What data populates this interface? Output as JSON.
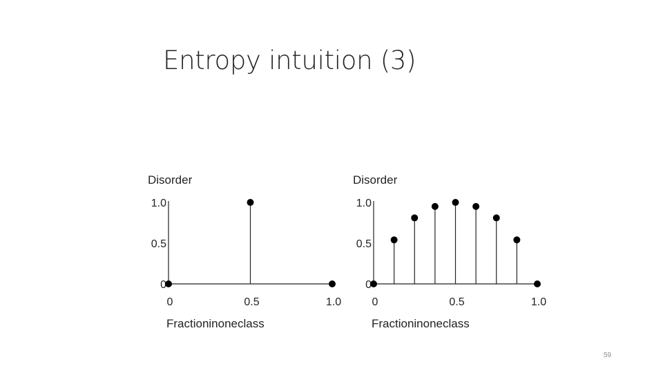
{
  "slide": {
    "title": "Entropy intuition (3)",
    "page_number": "59"
  },
  "chart_data": [
    {
      "type": "scatter",
      "style": "stem",
      "ylabel": "Disorder",
      "xlabel": "Fractioninoneclass",
      "x_ticks": [
        "0",
        "0.5",
        "1.0"
      ],
      "y_ticks": [
        "0",
        "0.5",
        "1.0"
      ],
      "xlim": [
        0,
        1
      ],
      "ylim": [
        0,
        1
      ],
      "grid": false,
      "points": [
        {
          "x": 0,
          "y": 0
        },
        {
          "x": 0.5,
          "y": 1.0
        },
        {
          "x": 1.0,
          "y": 0
        }
      ]
    },
    {
      "type": "scatter",
      "style": "stem",
      "ylabel": "Disorder",
      "xlabel": "Fractioninoneclass",
      "x_ticks": [
        "0",
        "0.5",
        "1.0"
      ],
      "y_ticks": [
        "0",
        "0.5",
        "1.0"
      ],
      "xlim": [
        0,
        1
      ],
      "ylim": [
        0,
        1
      ],
      "grid": false,
      "points": [
        {
          "x": 0,
          "y": 0
        },
        {
          "x": 0.125,
          "y": 0.54
        },
        {
          "x": 0.25,
          "y": 0.81
        },
        {
          "x": 0.375,
          "y": 0.95
        },
        {
          "x": 0.5,
          "y": 1.0
        },
        {
          "x": 0.625,
          "y": 0.95
        },
        {
          "x": 0.75,
          "y": 0.81
        },
        {
          "x": 0.875,
          "y": 0.54
        },
        {
          "x": 1.0,
          "y": 0
        }
      ]
    }
  ]
}
